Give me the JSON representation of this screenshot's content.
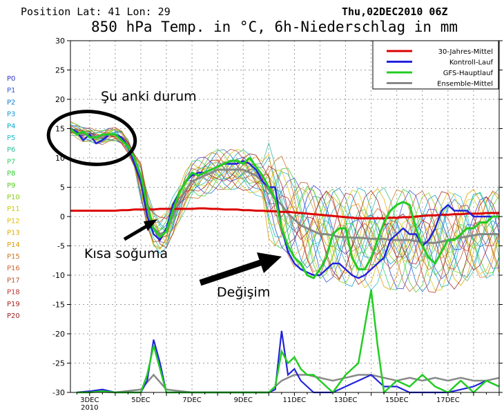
{
  "header": {
    "position": "Position   Lat: 41 Lon: 29",
    "datetime": "Thu,02DEC2010 06Z",
    "title": "850 hPa Temp. in °C, 6h-Niederschlag in mm"
  },
  "members": [
    "P0",
    "P1",
    "P2",
    "P3",
    "P4",
    "P5",
    "P6",
    "P7",
    "P8",
    "P9",
    "P10",
    "P11",
    "P12",
    "P13",
    "P14",
    "P15",
    "P16",
    "P17",
    "P18",
    "P19",
    "P20"
  ],
  "member_colors": [
    "#3333cc",
    "#3355dd",
    "#1177cc",
    "#1199cc",
    "#00aacc",
    "#22bbcc",
    "#33bb99",
    "#33cc66",
    "#33cc33",
    "#55cc22",
    "#88cc11",
    "#cccc00",
    "#ddbb00",
    "#ddaa00",
    "#dd9900",
    "#cc7722",
    "#cc6633",
    "#bb5533",
    "#bb3333",
    "#aa2222",
    "#992222"
  ],
  "annotations": {
    "current": "Şu anki durum",
    "cold": "Kısa soğuma",
    "change": "Değişim"
  },
  "colors": {
    "clim": "#dd0000",
    "control": "#2222dd",
    "gfs": "#22cc22",
    "ensemble": "#888888"
  },
  "chart_data": {
    "type": "line",
    "title": "850 hPa Temp. in °C, 6h-Niederschlag in mm",
    "xlabel": "",
    "ylabel": "",
    "ylim": [
      -30,
      30
    ],
    "yticks": [
      30,
      25,
      20,
      15,
      10,
      5,
      0,
      -5,
      -10,
      -15,
      -20,
      -25,
      -30
    ],
    "xlim": [
      2.25,
      19.0
    ],
    "xticks": [
      {
        "x": 3,
        "label": "3DEC",
        "sub": "2010"
      },
      {
        "x": 5,
        "label": "5DEC"
      },
      {
        "x": 7,
        "label": "7DEC"
      },
      {
        "x": 9,
        "label": "9DEC"
      },
      {
        "x": 11,
        "label": "11DEC"
      },
      {
        "x": 13,
        "label": "13DEC"
      },
      {
        "x": 15,
        "label": "15DEC"
      },
      {
        "x": 17,
        "label": "17DEC"
      }
    ],
    "legend": [
      "30-Jahres-Mittel",
      "Kontroll-Lauf",
      "GFS-Hauptlauf",
      "Ensemble-Mittel"
    ],
    "legend_position": "top-right",
    "x": [
      2.25,
      2.5,
      2.75,
      3,
      3.25,
      3.5,
      3.75,
      4,
      4.25,
      4.5,
      4.75,
      5,
      5.25,
      5.5,
      5.75,
      6,
      6.25,
      6.5,
      6.75,
      7,
      7.25,
      7.5,
      7.75,
      8,
      8.25,
      8.5,
      8.75,
      9,
      9.25,
      9.5,
      9.75,
      10,
      10.25,
      10.5,
      10.75,
      11,
      11.25,
      11.5,
      11.75,
      12,
      12.25,
      12.5,
      12.75,
      13,
      13.25,
      13.5,
      13.75,
      14,
      14.25,
      14.5,
      14.75,
      15,
      15.25,
      15.5,
      15.75,
      16,
      16.25,
      16.5,
      16.75,
      17,
      17.25,
      17.5,
      17.75,
      18,
      18.25,
      18.5,
      18.75,
      19
    ],
    "series": [
      {
        "name": "30-Jahres-Mittel",
        "values": [
          1,
          1,
          1,
          1,
          1,
          1,
          1,
          1,
          1.1,
          1.1,
          1.2,
          1.2,
          1.2,
          1.2,
          1.3,
          1.3,
          1.3,
          1.3,
          1.3,
          1.3,
          1.4,
          1.4,
          1.3,
          1.3,
          1.2,
          1.2,
          1.2,
          1.1,
          1.1,
          1,
          1,
          0.9,
          0.9,
          0.8,
          0.8,
          0.7,
          0.6,
          0.5,
          0.4,
          0.3,
          0.2,
          0.1,
          0,
          -0.1,
          -0.2,
          -0.3,
          -0.3,
          -0.3,
          -0.3,
          -0.3,
          -0.2,
          -0.2,
          -0.1,
          -0.1,
          0,
          0.1,
          0.2,
          0.2,
          0.3,
          0.3,
          0.4,
          0.4,
          0.5,
          0.5,
          0.5,
          0.6,
          0.6,
          0.6
        ]
      },
      {
        "name": "Kontroll-Lauf",
        "values": [
          15,
          14.5,
          13,
          14,
          12.5,
          13,
          14,
          14,
          13.5,
          12,
          9,
          6,
          0,
          -3,
          -4,
          -2,
          2,
          4,
          6,
          7,
          7.5,
          7.5,
          8,
          8.5,
          9,
          9,
          9,
          9.5,
          9,
          8,
          6,
          5,
          5,
          -2,
          -6,
          -8,
          -9,
          -9.5,
          -10,
          -10,
          -9,
          -8,
          -8,
          -9,
          -10,
          -10.5,
          -10,
          -9,
          -8,
          -7,
          -4,
          -3,
          -2,
          -3,
          -3,
          -5,
          -4,
          -2,
          1,
          2,
          1,
          1,
          1,
          0,
          0,
          0,
          0,
          0
        ]
      },
      {
        "name": "GFS-Hauptlauf",
        "values": [
          15,
          14,
          14.5,
          13.5,
          13.5,
          14,
          14,
          14,
          13,
          12,
          10,
          7,
          2,
          -2,
          -3.5,
          -2.5,
          1,
          4,
          6,
          7.5,
          7,
          7.5,
          8,
          8.5,
          9,
          9.5,
          9.5,
          9,
          10,
          8.5,
          7,
          5,
          3,
          -2,
          -5,
          -7,
          -8,
          -10,
          -10.5,
          -9,
          -7,
          -3,
          -2,
          -2,
          -7,
          -9,
          -9,
          -7,
          -4,
          -1,
          1,
          2,
          2.5,
          2,
          -2,
          -5,
          -7,
          -8,
          -6,
          -4,
          -4,
          -3,
          -2,
          -2,
          -1,
          -1,
          0,
          0
        ]
      },
      {
        "name": "Ensemble-Mittel",
        "values": [
          15,
          14.5,
          14,
          14,
          13.5,
          13.5,
          14,
          14,
          13.5,
          12,
          9.5,
          6,
          1,
          -2,
          -3,
          -2.5,
          0,
          2.5,
          4.5,
          6,
          6.5,
          7,
          7.5,
          8,
          8,
          8,
          8,
          8,
          7.5,
          7,
          6,
          4.5,
          3,
          2,
          0.5,
          -0.5,
          -1.5,
          -2,
          -2.5,
          -3,
          -3,
          -3.2,
          -3.5,
          -3.5,
          -3.6,
          -3.6,
          -3.7,
          -3.8,
          -3.8,
          -3.8,
          -4,
          -4,
          -4,
          -4,
          -4.2,
          -4.4,
          -4.5,
          -4.5,
          -4.3,
          -4,
          -3.8,
          -3.6,
          -3.4,
          -3.2,
          -3,
          -3,
          -3,
          -3
        ]
      }
    ],
    "precip_control": [
      [
        2.5,
        -30
      ],
      [
        3.0,
        -29.8
      ],
      [
        3.5,
        -29.5
      ],
      [
        4,
        -30
      ],
      [
        4.5,
        -30
      ],
      [
        5,
        -30
      ],
      [
        5.25,
        -28
      ],
      [
        5.5,
        -21
      ],
      [
        5.75,
        -25
      ],
      [
        6,
        -30
      ],
      [
        6.5,
        -30
      ],
      [
        7,
        -30
      ],
      [
        7.5,
        -30
      ],
      [
        8,
        -30
      ],
      [
        8.5,
        -30
      ],
      [
        9,
        -30
      ],
      [
        9.5,
        -30
      ],
      [
        10,
        -30
      ],
      [
        10.25,
        -29.5
      ],
      [
        10.5,
        -19.5
      ],
      [
        10.75,
        -27
      ],
      [
        11,
        -26
      ],
      [
        11.25,
        -28
      ],
      [
        11.5,
        -29
      ],
      [
        11.75,
        -30
      ],
      [
        12,
        -30
      ],
      [
        12.5,
        -30
      ],
      [
        13,
        -29
      ],
      [
        13.5,
        -28
      ],
      [
        14,
        -27
      ],
      [
        14.5,
        -29
      ],
      [
        15,
        -29
      ],
      [
        15.5,
        -30
      ],
      [
        16,
        -30
      ],
      [
        16.5,
        -30
      ],
      [
        17,
        -30
      ],
      [
        17.5,
        -29.5
      ],
      [
        18,
        -29
      ],
      [
        18.5,
        -28
      ],
      [
        19,
        -29
      ]
    ],
    "precip_gfs": [
      [
        2.5,
        -30
      ],
      [
        3,
        -30
      ],
      [
        3.5,
        -29.8
      ],
      [
        4,
        -30
      ],
      [
        4.5,
        -30
      ],
      [
        5,
        -30
      ],
      [
        5.25,
        -27
      ],
      [
        5.5,
        -22
      ],
      [
        5.75,
        -26
      ],
      [
        6,
        -30
      ],
      [
        7,
        -30
      ],
      [
        8,
        -30
      ],
      [
        9,
        -30
      ],
      [
        10,
        -30
      ],
      [
        10.25,
        -29
      ],
      [
        10.5,
        -23
      ],
      [
        10.75,
        -25
      ],
      [
        11,
        -24
      ],
      [
        11.25,
        -26
      ],
      [
        11.5,
        -27
      ],
      [
        11.75,
        -27
      ],
      [
        12,
        -28
      ],
      [
        12.5,
        -30
      ],
      [
        13,
        -27
      ],
      [
        13.5,
        -25
      ],
      [
        14,
        -12.5
      ],
      [
        14.25,
        -22
      ],
      [
        14.5,
        -30
      ],
      [
        15,
        -28
      ],
      [
        15.5,
        -29
      ],
      [
        16,
        -27
      ],
      [
        16.5,
        -29
      ],
      [
        17,
        -30
      ],
      [
        17.5,
        -28
      ],
      [
        18,
        -30
      ],
      [
        18.5,
        -28
      ],
      [
        19,
        -29
      ]
    ],
    "precip_mean": [
      [
        2.5,
        -30
      ],
      [
        3,
        -29.8
      ],
      [
        4,
        -30
      ],
      [
        5,
        -29.5
      ],
      [
        5.5,
        -27
      ],
      [
        6,
        -29.5
      ],
      [
        7,
        -30
      ],
      [
        8,
        -30
      ],
      [
        9,
        -30
      ],
      [
        10,
        -30
      ],
      [
        10.5,
        -28
      ],
      [
        11,
        -27
      ],
      [
        11.5,
        -27
      ],
      [
        12,
        -27.5
      ],
      [
        12.5,
        -28
      ],
      [
        13,
        -27.5
      ],
      [
        13.5,
        -27
      ],
      [
        14,
        -27
      ],
      [
        14.5,
        -27.5
      ],
      [
        15,
        -28
      ],
      [
        15.5,
        -27.5
      ],
      [
        16,
        -28
      ],
      [
        16.5,
        -27.5
      ],
      [
        17,
        -28
      ],
      [
        17.5,
        -27.5
      ],
      [
        18,
        -28
      ],
      [
        18.5,
        -28
      ],
      [
        19,
        -27.5
      ]
    ]
  }
}
